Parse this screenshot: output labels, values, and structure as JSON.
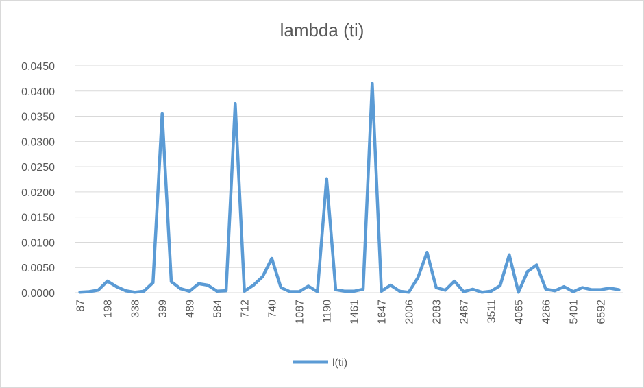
{
  "chart_data": {
    "type": "line",
    "title": "lambda (ti)",
    "xlabel": "",
    "ylabel": "",
    "ylim": [
      0,
      0.045
    ],
    "y_ticks": [
      "0.0000",
      "0.0050",
      "0.0100",
      "0.0150",
      "0.0200",
      "0.0250",
      "0.0300",
      "0.0350",
      "0.0400",
      "0.0450"
    ],
    "x_tick_labels": [
      "87",
      "198",
      "338",
      "399",
      "489",
      "584",
      "712",
      "740",
      "1087",
      "1190",
      "1461",
      "1647",
      "2006",
      "2083",
      "2467",
      "3511",
      "4065",
      "4266",
      "5401",
      "6592"
    ],
    "grid": "horizontal",
    "legend_position": "bottom",
    "series": [
      {
        "name": "l(ti)",
        "color": "#5b9bd5",
        "values": [
          0.0001,
          0.0002,
          0.0005,
          0.0023,
          0.0012,
          0.0004,
          0.0001,
          0.0003,
          0.002,
          0.0355,
          0.0022,
          0.0008,
          0.0003,
          0.0018,
          0.0015,
          0.0003,
          0.0004,
          0.0375,
          0.0003,
          0.0015,
          0.0032,
          0.0068,
          0.001,
          0.0002,
          0.0002,
          0.0013,
          0.0002,
          0.0226,
          0.0006,
          0.0003,
          0.0003,
          0.0007,
          0.0415,
          0.0003,
          0.0015,
          0.0003,
          0.0001,
          0.003,
          0.008,
          0.001,
          0.0005,
          0.0023,
          0.0002,
          0.0007,
          0.0001,
          0.0003,
          0.0014,
          0.0075,
          0.0001,
          0.0042,
          0.0055,
          0.0007,
          0.0004,
          0.0012,
          0.0002,
          0.001,
          0.0006,
          0.0006,
          0.0009,
          0.0006
        ]
      }
    ]
  }
}
